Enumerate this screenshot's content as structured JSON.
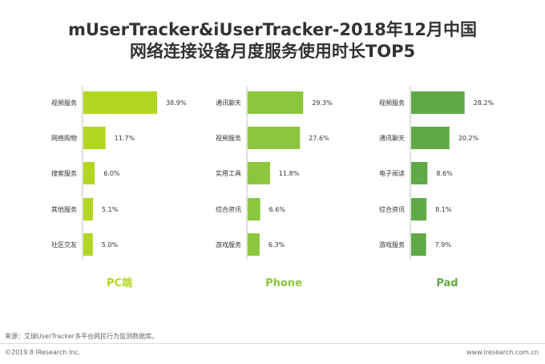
{
  "title_line1": "mUserTracker&iUserTracker-2018年12月中国",
  "title_line2": "网络连接设备月度服务使用时长TOP5",
  "chart_data": [
    {
      "type": "bar",
      "title": "PC端",
      "categories": [
        "视频服务",
        "网络购物",
        "搜索服务",
        "其他服务",
        "社区交友"
      ],
      "values": [
        38.9,
        11.7,
        6.0,
        5.1,
        5.0
      ],
      "value_labels": [
        "38.9%",
        "11.7%",
        "6.0%",
        "5.1%",
        "5.0%"
      ],
      "color": "#b3d622"
    },
    {
      "type": "bar",
      "title": "Phone",
      "categories": [
        "通讯聊天",
        "视频服务",
        "实用工具",
        "综合资讯",
        "游戏服务"
      ],
      "values": [
        29.3,
        27.6,
        11.8,
        6.6,
        6.3
      ],
      "value_labels": [
        "29.3%",
        "27.6%",
        "11.8%",
        "6.6%",
        "6.3%"
      ],
      "color": "#8cc63f"
    },
    {
      "type": "bar",
      "title": "Pad",
      "categories": [
        "视频服务",
        "通讯聊天",
        "电子阅读",
        "综合资讯",
        "游戏服务"
      ],
      "values": [
        28.2,
        20.2,
        8.6,
        8.1,
        7.9
      ],
      "value_labels": [
        "28.2%",
        "20.2%",
        "8.6%",
        "8.1%",
        "7.9%"
      ],
      "color": "#5faa46"
    }
  ],
  "footer": {
    "source": "来源：艾瑞UserTracker多平台网民行为监测数据库。",
    "copyright": "©2019.8 iResearch Inc.",
    "site": "www.iresearch.com.cn"
  }
}
